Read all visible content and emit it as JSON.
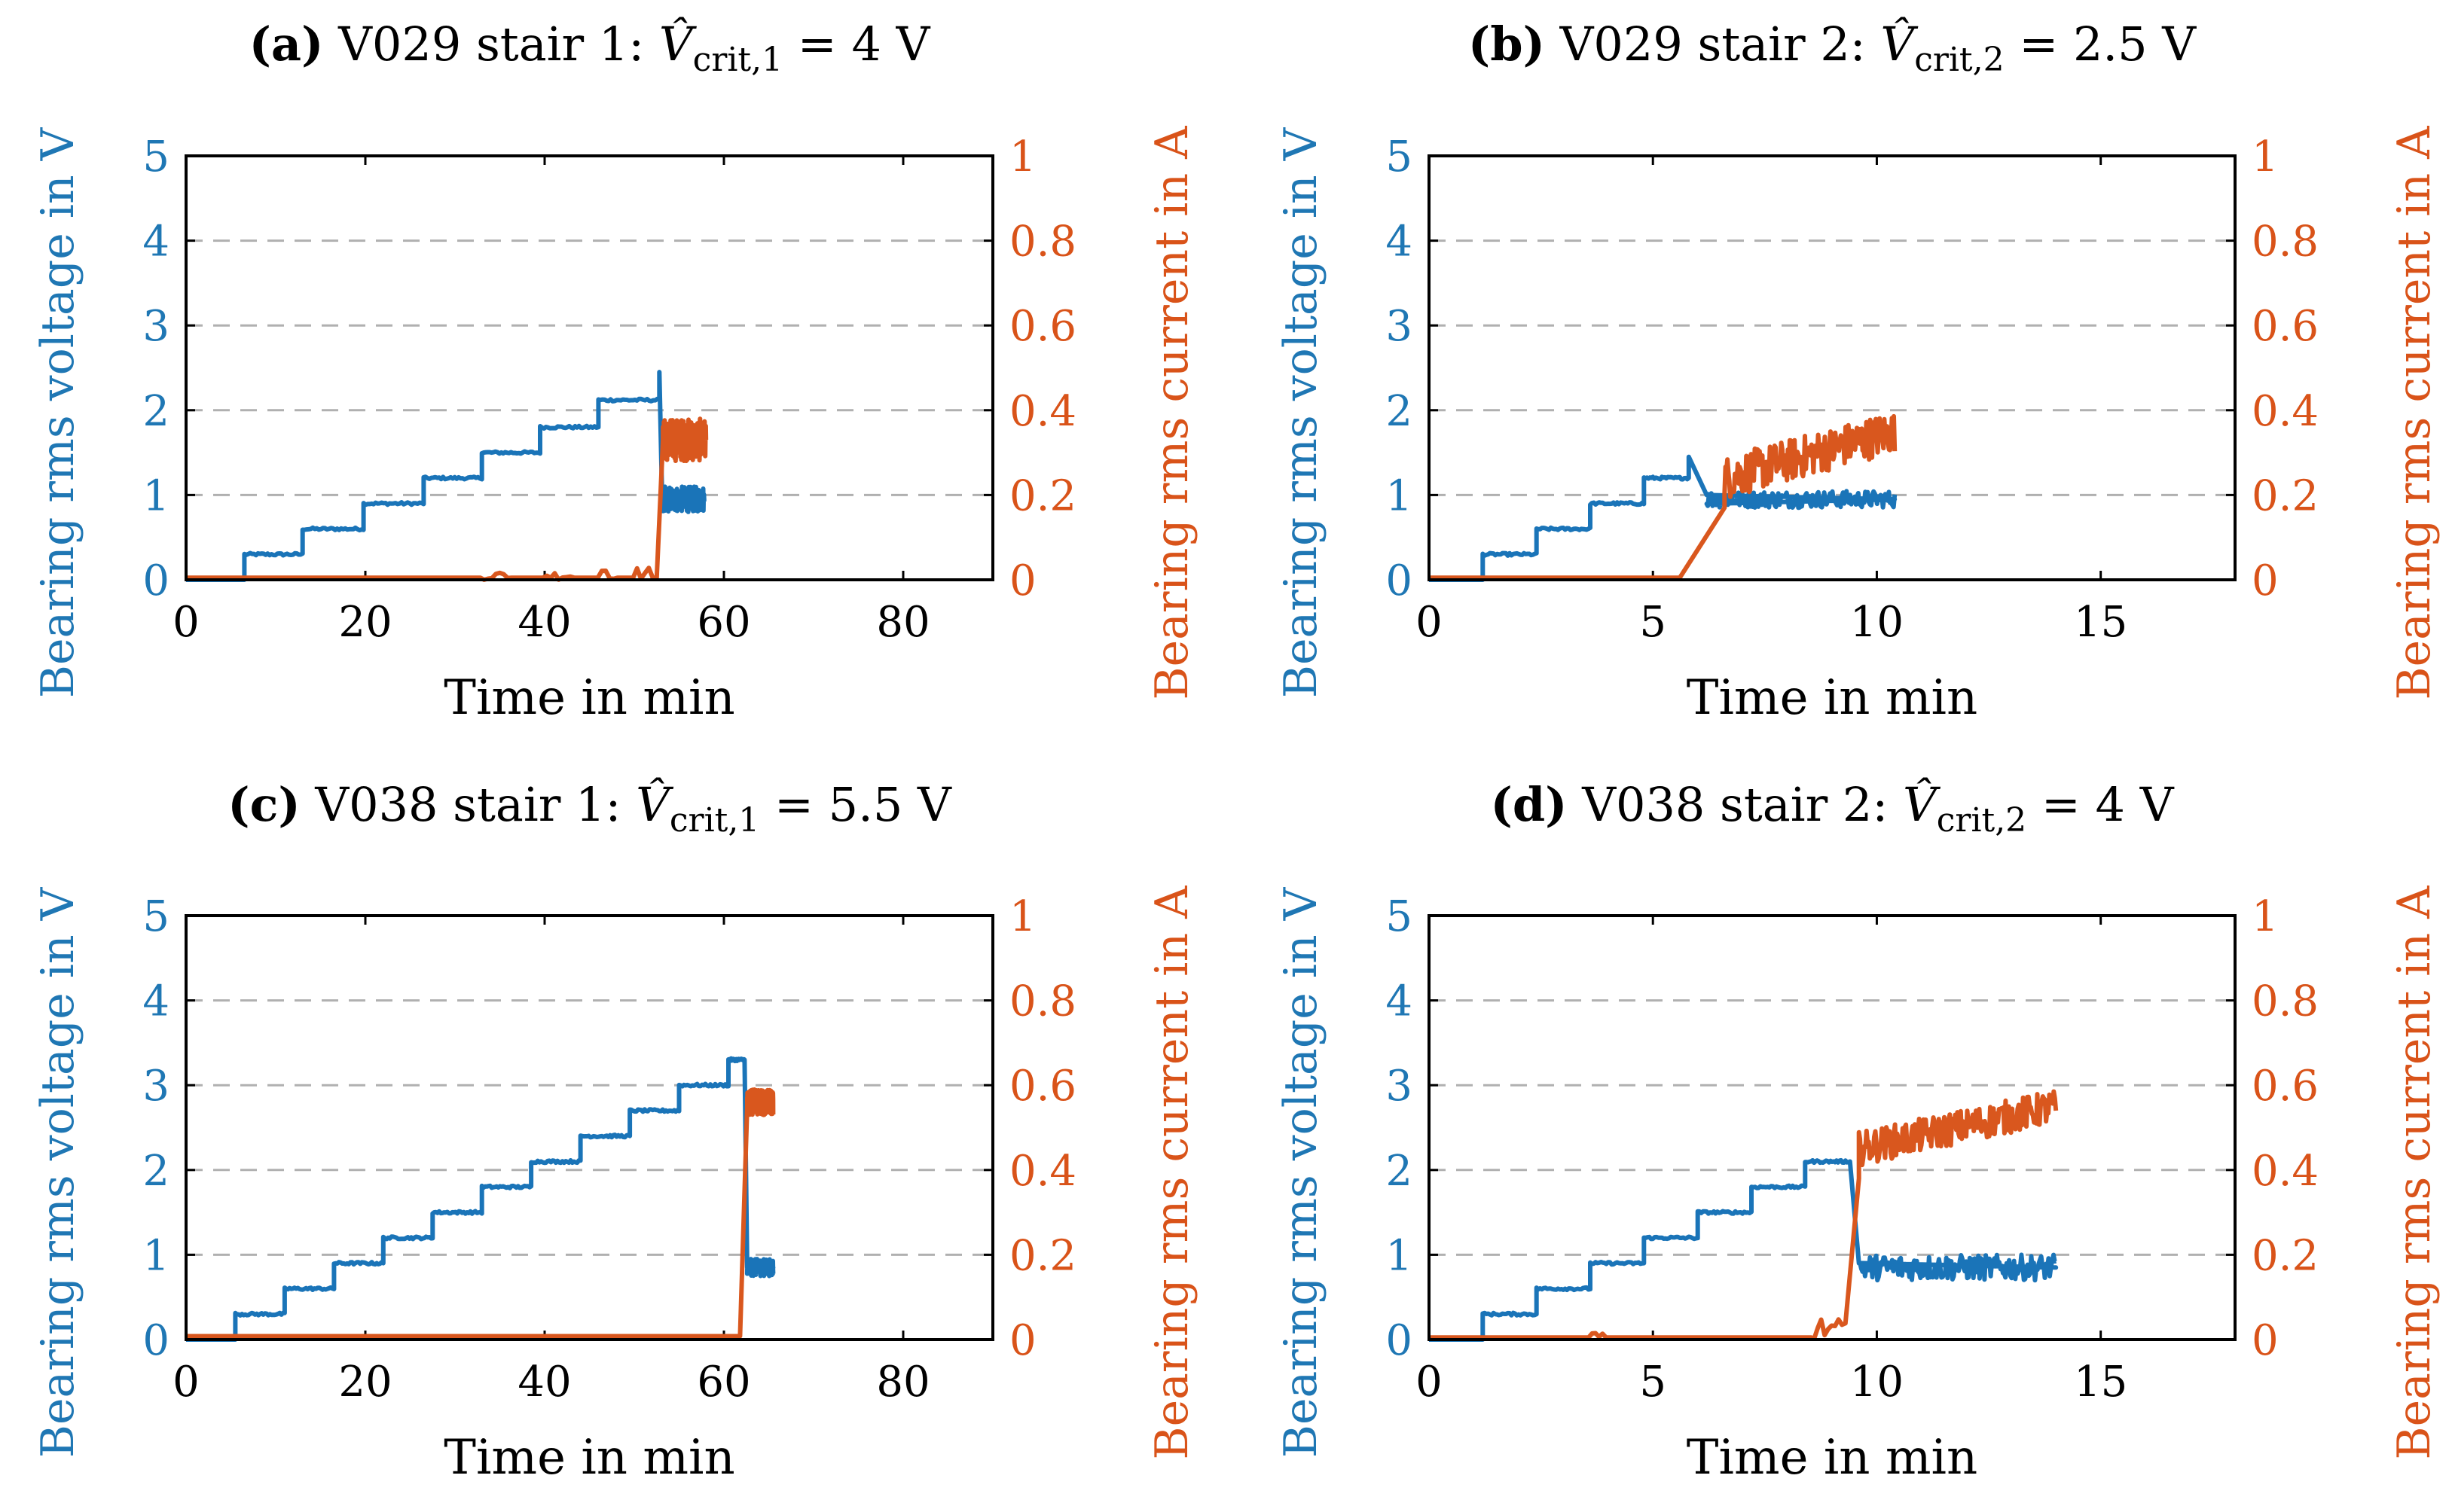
{
  "chart_data": [
    {
      "id": "a",
      "type": "line",
      "title_label": "(a)",
      "title_text": "V029 stair 1:",
      "title_formula": "V̂crit,1 = 4 V",
      "title_symbol": "V̂",
      "title_sub": "crit,1",
      "title_rhs": "= 4 V",
      "xlabel": "Time in min",
      "ylabel_left": "Bearing rms voltage in V",
      "ylabel_right": "Bearing rms current in A",
      "xlim": [
        0,
        90
      ],
      "ylim_left": [
        0,
        5
      ],
      "ylim_right": [
        0,
        1
      ],
      "xticks": [
        0,
        20,
        40,
        60,
        80
      ],
      "yticks_left": [
        0,
        1,
        2,
        3,
        4,
        5
      ],
      "yticks_right": [
        "0",
        "0.2",
        "0.4",
        "0.6",
        "0.8",
        "1"
      ],
      "grid": "horizontal dashed",
      "series": [
        {
          "name": "Bearing rms voltage",
          "axis": "left",
          "color": "#1a74b8",
          "steps": [
            [
              0,
              6.5,
              0
            ],
            [
              6.5,
              13,
              0.3
            ],
            [
              13,
              19.8,
              0.6
            ],
            [
              19.8,
              26.5,
              0.9
            ],
            [
              26.5,
              33,
              1.2
            ],
            [
              33,
              39.5,
              1.5
            ],
            [
              39.5,
              46,
              1.8
            ],
            [
              46,
              52.8,
              2.12
            ]
          ],
          "spike": [
            [
              52.8,
              2.45
            ],
            [
              53.1,
              1.0
            ],
            [
              57.8,
              0.95
            ]
          ],
          "noise_after": [
            53.2,
            57.8,
            0.95,
            0.15
          ]
        },
        {
          "name": "Bearing rms current",
          "axis": "right",
          "color": "#d9571e",
          "baseline": 0.005,
          "bumps": [
            [
              33,
              36,
              0.02
            ],
            [
              40,
              43,
              0.02
            ],
            [
              46,
              48,
              0.05
            ],
            [
              50,
              52,
              0.03
            ]
          ],
          "rise": [
            52.5,
            53.2,
            0.33
          ],
          "noise_after": [
            53.2,
            58,
            0.33,
            0.05
          ]
        }
      ]
    },
    {
      "id": "b",
      "type": "line",
      "title_label": "(b)",
      "title_text": "V029 stair 2:",
      "title_formula": "V̂crit,2 = 2.5 V",
      "title_symbol": "V̂",
      "title_sub": "crit,2",
      "title_rhs": "= 2.5 V",
      "xlabel": "Time in min",
      "ylabel_left": "Bearing rms voltage in V",
      "ylabel_right": "Bearing rms current in A",
      "xlim": [
        0,
        18
      ],
      "ylim_left": [
        0,
        5
      ],
      "ylim_right": [
        0,
        1
      ],
      "xticks": [
        0,
        5,
        10,
        15
      ],
      "yticks_left": [
        0,
        1,
        2,
        3,
        4,
        5
      ],
      "yticks_right": [
        "0",
        "0.2",
        "0.4",
        "0.6",
        "0.8",
        "1"
      ],
      "grid": "horizontal dashed",
      "series": [
        {
          "name": "Bearing rms voltage",
          "axis": "left",
          "color": "#1a74b8",
          "steps": [
            [
              0,
              1.2,
              0
            ],
            [
              1.2,
              2.4,
              0.3
            ],
            [
              2.4,
              3.6,
              0.6
            ],
            [
              3.6,
              4.8,
              0.9
            ],
            [
              4.8,
              5.8,
              1.2
            ]
          ],
          "spike": [
            [
              5.8,
              1.45
            ],
            [
              6.2,
              1.0
            ],
            [
              10.4,
              0.95
            ]
          ],
          "noise_after": [
            6.2,
            10.4,
            0.95,
            0.1
          ]
        },
        {
          "name": "Bearing rms current",
          "axis": "right",
          "color": "#d9571e",
          "baseline": 0.005,
          "bumps": [],
          "rise": [
            5.6,
            6.6,
            0.17
          ],
          "noise_after": [
            6.6,
            10.4,
            0.24,
            0.05
          ],
          "trend_end": 0.35
        }
      ]
    },
    {
      "id": "c",
      "type": "line",
      "title_label": "(c)",
      "title_text": "V038 stair 1:",
      "title_formula": "V̂crit,1 = 5.5 V",
      "title_symbol": "V̂",
      "title_sub": "crit,1",
      "title_rhs": "= 5.5 V",
      "xlabel": "Time in min",
      "ylabel_left": "Bearing rms voltage in V",
      "ylabel_right": "Bearing rms current in A",
      "xlim": [
        0,
        90
      ],
      "ylim_left": [
        0,
        5
      ],
      "ylim_right": [
        0,
        1
      ],
      "xticks": [
        0,
        20,
        40,
        60,
        80
      ],
      "yticks_left": [
        0,
        1,
        2,
        3,
        4,
        5
      ],
      "yticks_right": [
        "0",
        "0.2",
        "0.4",
        "0.6",
        "0.8",
        "1"
      ],
      "grid": "horizontal dashed",
      "series": [
        {
          "name": "Bearing rms voltage",
          "axis": "left",
          "color": "#1a74b8",
          "steps": [
            [
              0,
              5.5,
              0
            ],
            [
              5.5,
              11,
              0.3
            ],
            [
              11,
              16.5,
              0.6
            ],
            [
              16.5,
              22,
              0.9
            ],
            [
              22,
              27.5,
              1.2
            ],
            [
              27.5,
              33,
              1.5
            ],
            [
              33,
              38.5,
              1.8
            ],
            [
              38.5,
              44,
              2.1
            ],
            [
              44,
              49.5,
              2.4
            ],
            [
              49.5,
              55,
              2.7
            ],
            [
              55,
              60.5,
              3.0
            ],
            [
              60.5,
              62.3,
              3.3
            ]
          ],
          "spike": [
            [
              62.3,
              3.3
            ],
            [
              62.6,
              0.85
            ],
            [
              65.5,
              0.85
            ]
          ],
          "noise_after": [
            62.6,
            65.5,
            0.85,
            0.1
          ]
        },
        {
          "name": "Bearing rms current",
          "axis": "right",
          "color": "#d9571e",
          "baseline": 0.008,
          "bumps": [],
          "rise": [
            61.8,
            62.6,
            0.55
          ],
          "noise_after": [
            62.6,
            65.5,
            0.56,
            0.03
          ]
        }
      ]
    },
    {
      "id": "d",
      "type": "line",
      "title_label": "(d)",
      "title_text": "V038 stair 2:",
      "title_formula": "V̂crit,2 = 4 V",
      "title_symbol": "V̂",
      "title_sub": "crit,2",
      "title_rhs": "= 4 V",
      "xlabel": "Time in min",
      "ylabel_left": "Bearing rms voltage in V",
      "ylabel_right": "Bearing rms current in A",
      "xlim": [
        0,
        18
      ],
      "ylim_left": [
        0,
        5
      ],
      "ylim_right": [
        0,
        1
      ],
      "xticks": [
        0,
        5,
        10,
        15
      ],
      "yticks_left": [
        0,
        1,
        2,
        3,
        4,
        5
      ],
      "yticks_right": [
        "0",
        "0.2",
        "0.4",
        "0.6",
        "0.8",
        "1"
      ],
      "grid": "horizontal dashed",
      "series": [
        {
          "name": "Bearing rms voltage",
          "axis": "left",
          "color": "#1a74b8",
          "steps": [
            [
              0,
              1.2,
              0
            ],
            [
              1.2,
              2.4,
              0.3
            ],
            [
              2.4,
              3.6,
              0.6
            ],
            [
              3.6,
              4.8,
              0.9
            ],
            [
              4.8,
              6.0,
              1.2
            ],
            [
              6.0,
              7.2,
              1.5
            ],
            [
              7.2,
              8.4,
              1.8
            ],
            [
              8.4,
              9.4,
              2.1
            ]
          ],
          "spike": [
            [
              9.4,
              2.1
            ],
            [
              9.6,
              0.9
            ],
            [
              14,
              0.85
            ]
          ],
          "noise_after": [
            9.6,
            14,
            0.85,
            0.15
          ]
        },
        {
          "name": "Bearing rms current",
          "axis": "right",
          "color": "#d9571e",
          "baseline": 0.005,
          "bumps": [
            [
              3.6,
              3.9,
              0.02
            ],
            [
              8.6,
              9.3,
              0.05
            ]
          ],
          "rise": [
            9.3,
            9.6,
            0.38
          ],
          "noise_after": [
            9.6,
            14,
            0.45,
            0.04
          ],
          "trend_end": 0.55
        }
      ]
    }
  ]
}
